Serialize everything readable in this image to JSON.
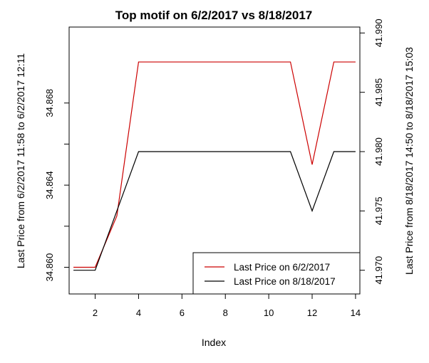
{
  "chart_data": {
    "type": "line",
    "title": "Top motif on 6/2/2017 vs 8/18/2017",
    "xlabel": "Index",
    "ylabel_left": "Last Price from 6/2/2017 11:58 to 6/2/2017 12:11",
    "ylabel_right": "Last Price from 8/18/2017 14:50 to 8/18/2017 15:03",
    "xlim": [
      0.8,
      14.2
    ],
    "ylim_left": [
      34.8587,
      34.8717
    ],
    "ylim_right": [
      41.968,
      41.9905
    ],
    "x_ticks": [
      2,
      4,
      6,
      8,
      10,
      12,
      14
    ],
    "y_ticks_left": [
      34.86,
      34.864,
      34.868
    ],
    "y_ticks_left_labels": [
      "34.860",
      "34.864",
      "34.868"
    ],
    "y_ticks_right": [
      41.97,
      41.975,
      41.98,
      41.985,
      41.99
    ],
    "y_ticks_right_labels": [
      "41.970",
      "41.975",
      "41.980",
      "41.985",
      "41.990"
    ],
    "grid": false,
    "legend_position": "bottom-right",
    "x": [
      1,
      2,
      3,
      4,
      5,
      6,
      7,
      8,
      9,
      10,
      11,
      12,
      13,
      14
    ],
    "series": [
      {
        "name": "Last Price on 6/2/2017",
        "axis": "left",
        "color": "#cc0000",
        "values": [
          34.86,
          34.86,
          34.8625,
          34.87,
          34.87,
          34.87,
          34.87,
          34.87,
          34.87,
          34.87,
          34.87,
          34.865,
          34.87,
          34.87
        ]
      },
      {
        "name": "Last Price on 8/18/2017",
        "axis": "right",
        "color": "#000000",
        "values": [
          41.97,
          41.97,
          41.975,
          41.98,
          41.98,
          41.98,
          41.98,
          41.98,
          41.98,
          41.98,
          41.98,
          41.975,
          41.98,
          41.98
        ]
      }
    ]
  }
}
